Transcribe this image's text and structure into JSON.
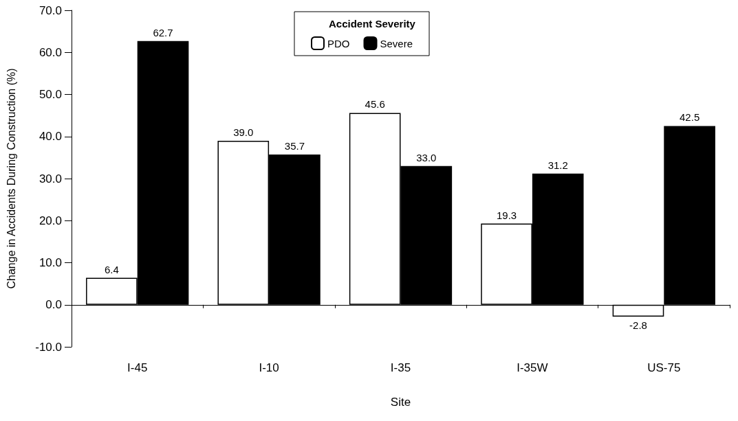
{
  "chart_data": {
    "type": "bar",
    "xlabel": "Site",
    "ylabel": "Change in Accidents During Construction (%)",
    "legend_title": "Accident Severity",
    "legend": "top",
    "categories": [
      "I-45",
      "I-10",
      "I-35",
      "I-35W",
      "US-75"
    ],
    "series": [
      {
        "name": "PDO",
        "color": "#ffffff",
        "values": [
          6.4,
          39.0,
          45.6,
          19.3,
          -2.8
        ],
        "value_labels": [
          "6.4",
          "39.0",
          "45.6",
          "19.3",
          "-2.8"
        ]
      },
      {
        "name": "Severe",
        "color": "#000000",
        "values": [
          62.7,
          35.7,
          33.0,
          31.2,
          42.5
        ],
        "value_labels": [
          "62.7",
          "35.7",
          "33.0",
          "31.2",
          "42.5"
        ]
      }
    ],
    "ylim": [
      -10,
      70
    ],
    "yticks": [
      {
        "value": -10,
        "label": "-10.0"
      },
      {
        "value": 0,
        "label": "0.0"
      },
      {
        "value": 10,
        "label": "10.0"
      },
      {
        "value": 20,
        "label": "20.0"
      },
      {
        "value": 30,
        "label": "30.0"
      },
      {
        "value": 40,
        "label": "40.0"
      },
      {
        "value": 50,
        "label": "50.0"
      },
      {
        "value": 60,
        "label": "60.0"
      },
      {
        "value": 70,
        "label": "70.0"
      }
    ]
  }
}
